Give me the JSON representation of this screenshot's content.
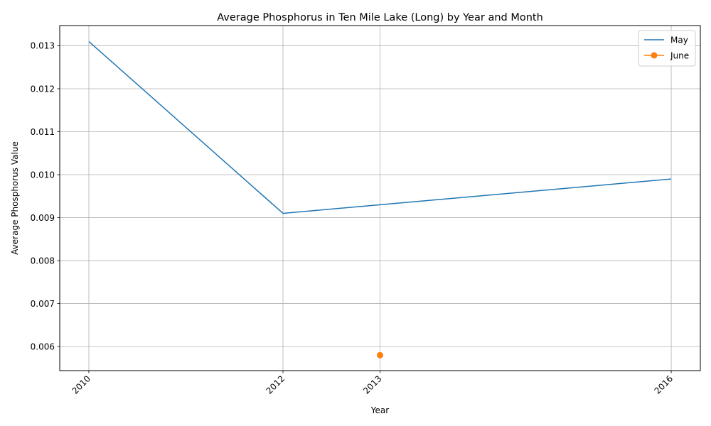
{
  "chart_data": {
    "type": "line",
    "title": "Average Phosphorus in Ten Mile Lake (Long) by Year and Month",
    "xlabel": "Year",
    "ylabel": "Average Phosphorus Value",
    "x_ticks": [
      "2010",
      "2012",
      "2013",
      "2016"
    ],
    "y_ticks": [
      "0.006",
      "0.007",
      "0.008",
      "0.009",
      "0.010",
      "0.011",
      "0.012",
      "0.013"
    ],
    "xlim": [
      2009.7,
      2016.3
    ],
    "ylim": [
      0.00544,
      0.01347
    ],
    "grid": true,
    "legend_position": "top-right",
    "series": [
      {
        "name": "May",
        "color": "#1f77b4",
        "marker": "none",
        "x": [
          2010,
          2012,
          2013,
          2016
        ],
        "y": [
          0.0131,
          0.0091,
          0.0093,
          0.0099
        ]
      },
      {
        "name": "June",
        "color": "#ff7f0e",
        "marker": "circle",
        "x": [
          2013
        ],
        "y": [
          0.0058
        ]
      }
    ]
  }
}
